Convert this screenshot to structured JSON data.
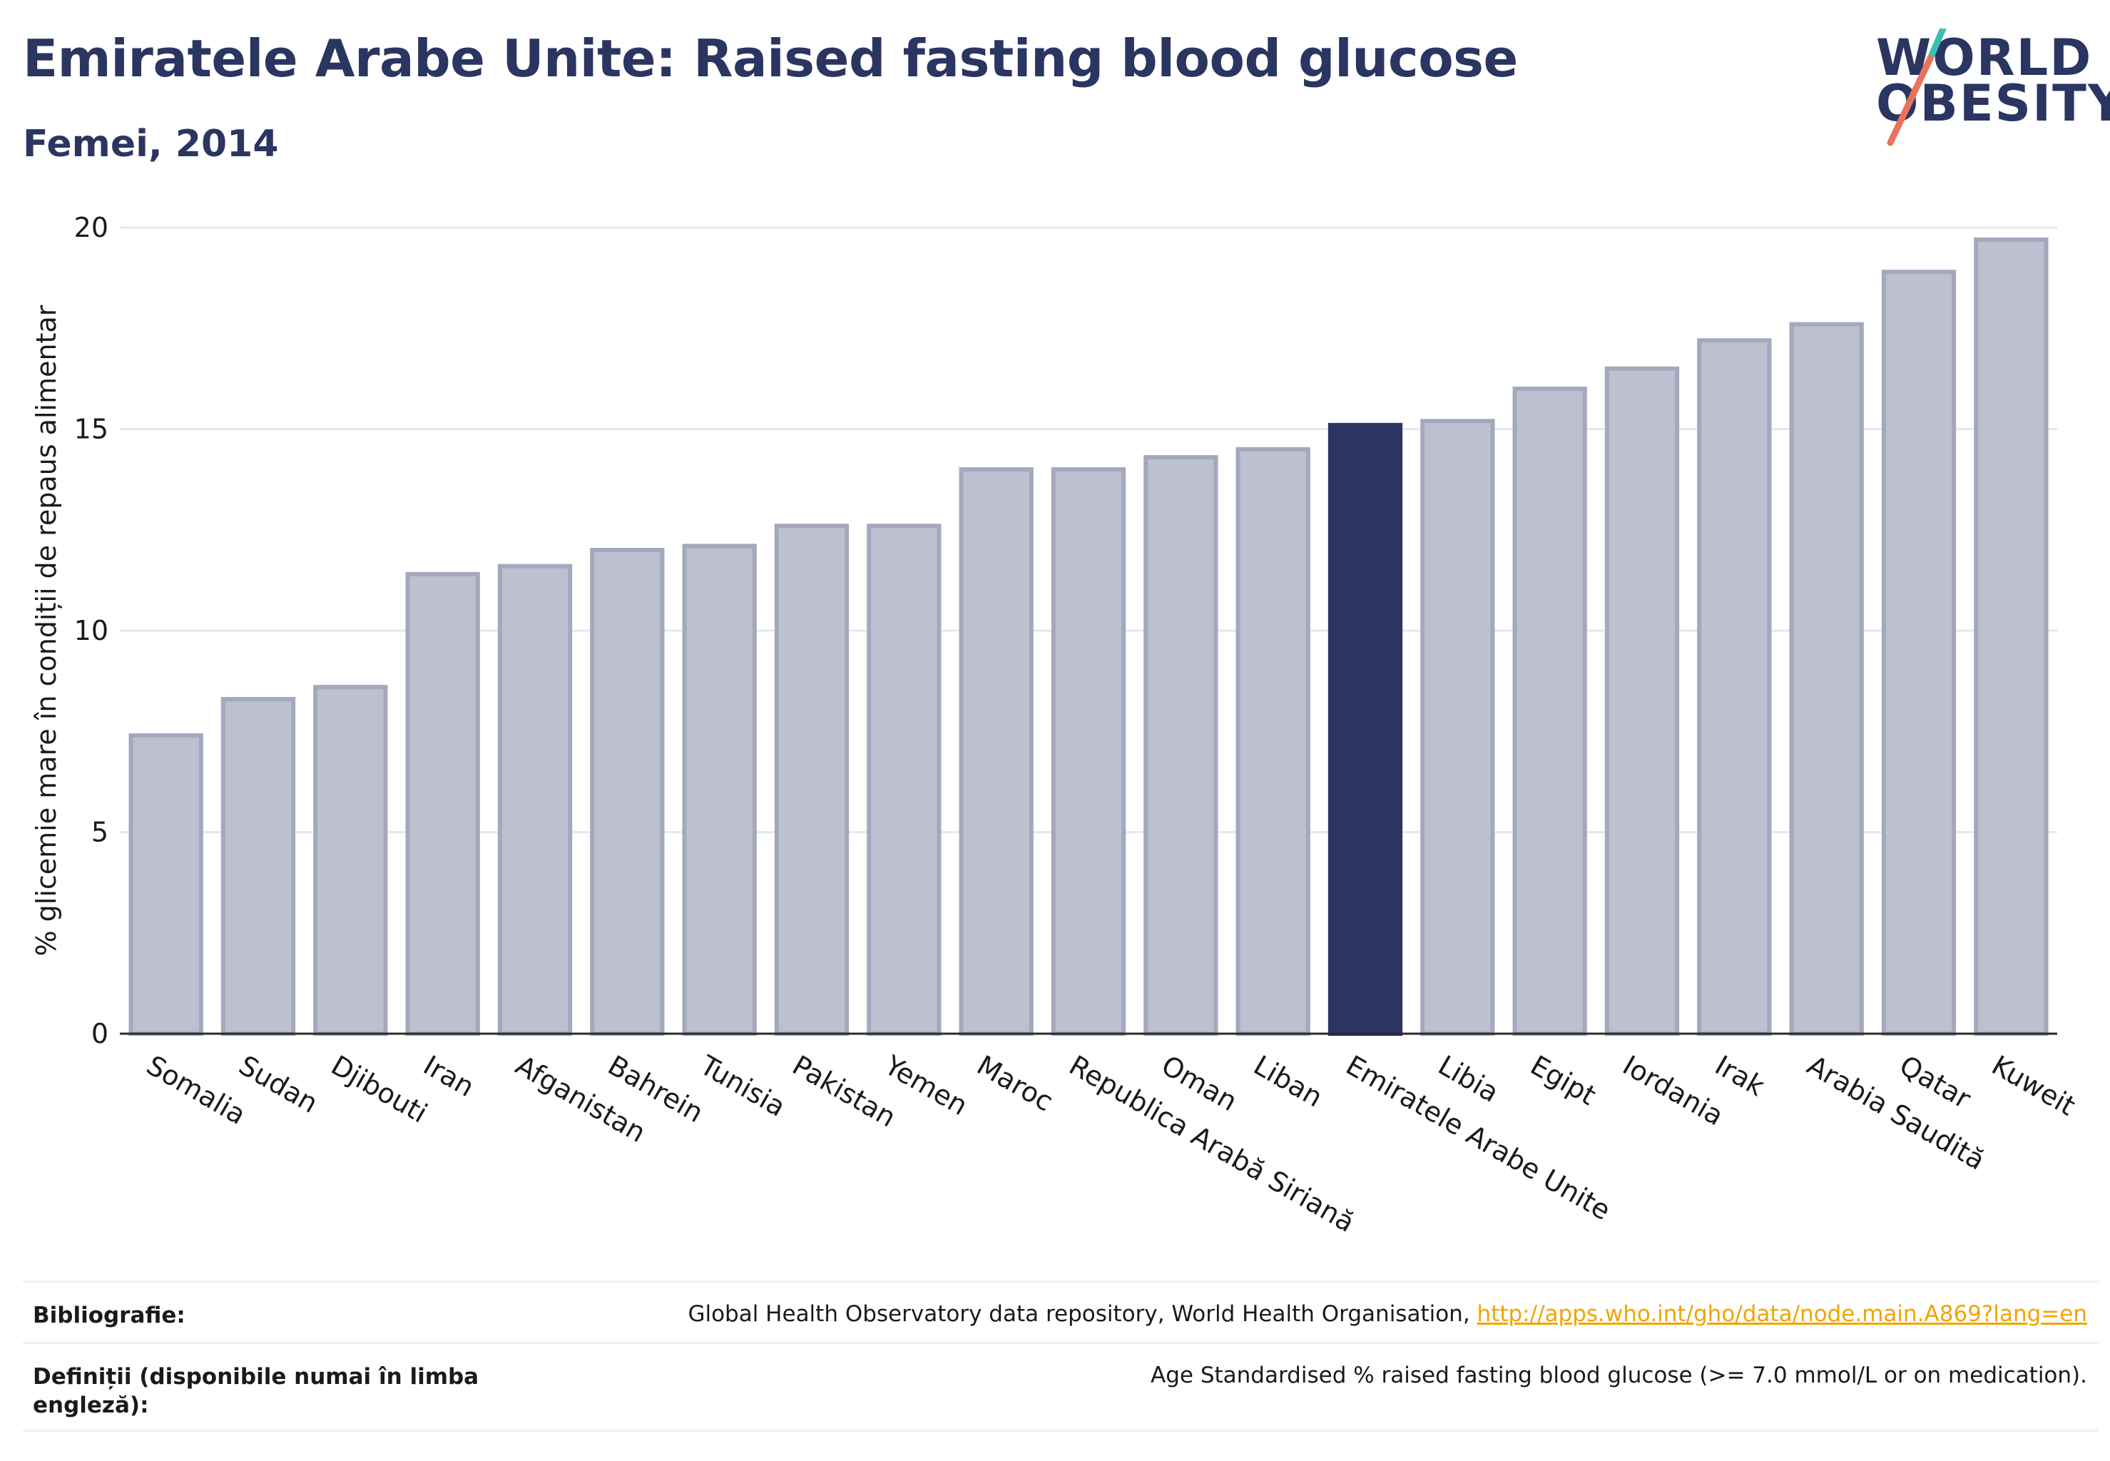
{
  "header": {
    "title": "Emiratele Arabe Unite: Raised fasting blood glucose",
    "subtitle": "Femei, 2014"
  },
  "logo": {
    "line1": "WORLD",
    "line2": "OBESITY"
  },
  "colors": {
    "title": "#2b3561",
    "bar_default": "#bcc0cf",
    "bar_default_border": "#a3a8bd",
    "bar_highlight": "#2b3561",
    "gridline": "#e6e8ee",
    "link": "#f0a500",
    "logo_accent_teal": "#3bbfb4",
    "logo_accent_coral": "#e8735a"
  },
  "chart_data": {
    "type": "bar",
    "categories": [
      "Somalia",
      "Sudan",
      "Djibouti",
      "Iran",
      "Afganistan",
      "Bahrein",
      "Tunisia",
      "Pakistan",
      "Yemen",
      "Maroc",
      "Republica Arabă Siriană",
      "Oman",
      "Liban",
      "Emiratele Arabe Unite",
      "Libia",
      "Egipt",
      "Iordania",
      "Irak",
      "Arabia Saudită",
      "Qatar",
      "Kuweit"
    ],
    "values": [
      7.4,
      8.3,
      8.6,
      11.4,
      11.6,
      12.0,
      12.1,
      12.6,
      12.6,
      14.0,
      14.0,
      14.3,
      14.5,
      15.1,
      15.2,
      16.0,
      16.5,
      17.2,
      17.6,
      18.9,
      19.7
    ],
    "highlight": "Emiratele Arabe Unite",
    "ylabel": "% glicemie mare în condiții de repaus alimentar",
    "ylim": [
      0,
      20
    ],
    "yticks": [
      0,
      5,
      10,
      15,
      20
    ],
    "grid": true
  },
  "references": {
    "bibliography_label": "Bibliografie:",
    "bibliography_text": "Global Health Observatory data repository, World Health Organisation, ",
    "bibliography_link": "http://apps.who.int/gho/data/node.main.A869?lang=en",
    "definitions_label": "Definiții (disponibile numai în limba engleză):",
    "definitions_text": "Age Standardised % raised fasting blood glucose (>= 7.0 mmol/L or on medication)."
  }
}
